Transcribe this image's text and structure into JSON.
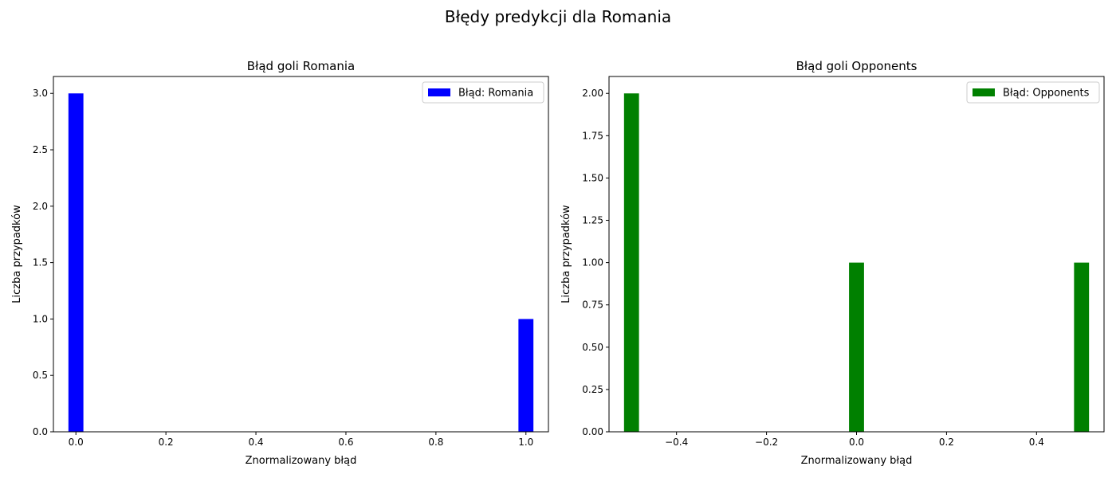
{
  "figure": {
    "suptitle": "Błędy predykcji dla Romania"
  },
  "chart_data": [
    {
      "type": "bar",
      "title": "Błąd goli Romania",
      "xlabel": "Znormalizowany błąd",
      "ylabel": "Liczba przypadków",
      "xlim": [
        -0.05,
        1.05
      ],
      "ylim": [
        0,
        3.15
      ],
      "xticks": [
        "0.0",
        "0.2",
        "0.4",
        "0.6",
        "0.8",
        "1.0"
      ],
      "xtick_values": [
        0.0,
        0.2,
        0.4,
        0.6,
        0.8,
        1.0
      ],
      "yticks": [
        "0.0",
        "0.5",
        "1.0",
        "1.5",
        "2.0",
        "2.5",
        "3.0"
      ],
      "ytick_values": [
        0.0,
        0.5,
        1.0,
        1.5,
        2.0,
        2.5,
        3.0
      ],
      "bar_width": 0.0333,
      "bars": [
        {
          "x": 0.0,
          "value": 3
        },
        {
          "x": 1.0,
          "value": 1
        }
      ],
      "series": [
        {
          "name": "Błąd: Romania",
          "color": "#0000ff"
        }
      ],
      "legend_position": "top-right",
      "grid": false
    },
    {
      "type": "bar",
      "title": "Błąd goli Opponents",
      "xlabel": "Znormalizowany błąd",
      "ylabel": "Liczba przypadków",
      "xlim": [
        -0.55,
        0.55
      ],
      "ylim": [
        0,
        2.1
      ],
      "xticks": [
        "−0.4",
        "−0.2",
        "0.0",
        "0.2",
        "0.4"
      ],
      "xtick_values": [
        -0.4,
        -0.2,
        0.0,
        0.2,
        0.4
      ],
      "yticks": [
        "0.00",
        "0.25",
        "0.50",
        "0.75",
        "1.00",
        "1.25",
        "1.50",
        "1.75",
        "2.00"
      ],
      "ytick_values": [
        0.0,
        0.25,
        0.5,
        0.75,
        1.0,
        1.25,
        1.5,
        1.75,
        2.0
      ],
      "bar_width": 0.0333,
      "bars": [
        {
          "x": -0.5,
          "value": 2
        },
        {
          "x": 0.0,
          "value": 1
        },
        {
          "x": 0.5,
          "value": 1
        }
      ],
      "series": [
        {
          "name": "Błąd: Opponents",
          "color": "#008000"
        }
      ],
      "legend_position": "top-right",
      "grid": false
    }
  ]
}
